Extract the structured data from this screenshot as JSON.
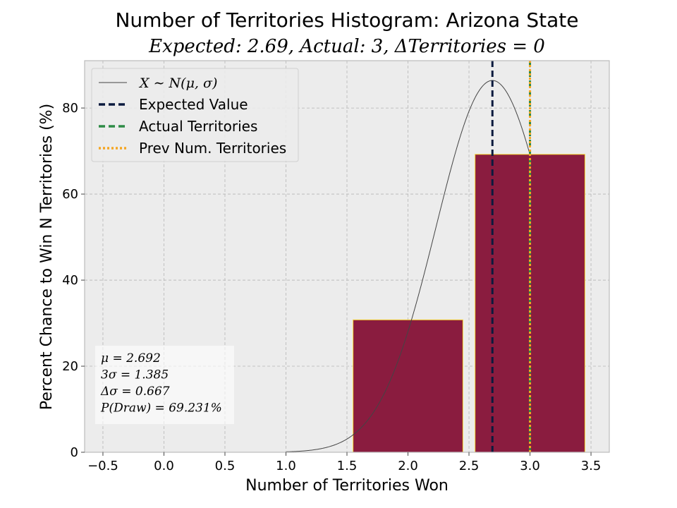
{
  "chart_data": {
    "type": "bar",
    "title": "Number of Territories Histogram: Arizona State",
    "subtitle": "Expected: 2.69, Actual: 3, ΔTerritories = 0",
    "xlabel": "Number of Territories Won",
    "ylabel": "Percent Chance to Win N Territories (%)",
    "xlim": [
      -0.65,
      3.65
    ],
    "ylim": [
      0,
      91
    ],
    "x_ticks": [
      -0.5,
      0.0,
      0.5,
      1.0,
      1.5,
      2.0,
      2.5,
      3.0,
      3.5
    ],
    "x_tick_labels": [
      "−0.5",
      "0.0",
      "0.5",
      "1.0",
      "1.5",
      "2.0",
      "2.5",
      "3.0",
      "3.5"
    ],
    "y_ticks": [
      0,
      20,
      40,
      60,
      80
    ],
    "y_tick_labels": [
      "0",
      "20",
      "40",
      "60",
      "80"
    ],
    "grid": true,
    "bars": [
      {
        "x": 2,
        "width": 0.9,
        "value": 30.769
      },
      {
        "x": 3,
        "width": 0.9,
        "value": 69.231
      }
    ],
    "bar_color": "#8a1c3f",
    "bar_edge_color": "#f5d431",
    "normal_curve": {
      "mu": 2.692,
      "sigma": 0.4615,
      "peak": 86.4,
      "color": "#444444"
    },
    "vlines": [
      {
        "x": 2.692,
        "color": "#0b1a3e",
        "style": "dashed"
      },
      {
        "x": 3.0,
        "color": "#2e8b46",
        "style": "dashed"
      },
      {
        "x": 3.0,
        "color": "#f5a623",
        "style": "dotted"
      }
    ],
    "legend": {
      "position": "top-left",
      "entries": [
        {
          "label": "X ∼ N(μ, σ)",
          "color": "#444444",
          "style": "solid"
        },
        {
          "label": "Expected Value",
          "color": "#0b1a3e",
          "style": "dashed"
        },
        {
          "label": "Actual Territories",
          "color": "#2e8b46",
          "style": "dashed"
        },
        {
          "label": "Prev Num. Territories",
          "color": "#f5a623",
          "style": "dotted"
        }
      ]
    },
    "stats_box": {
      "position": "bottom-left",
      "lines": [
        "μ = 2.692",
        "3σ = 1.385",
        "Δσ = 0.667",
        "P(Draw) = 69.231%"
      ]
    }
  }
}
